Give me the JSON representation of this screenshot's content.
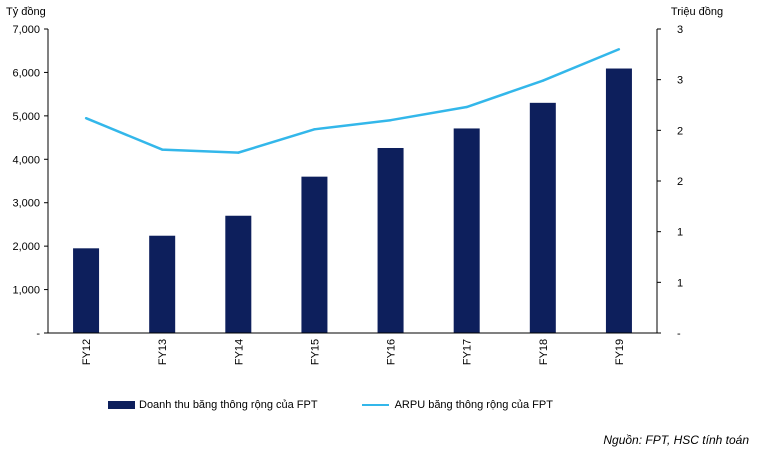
{
  "chart_data": {
    "type": "bar+line",
    "categories": [
      "FY12",
      "FY13",
      "FY14",
      "FY15",
      "FY16",
      "FY17",
      "FY18",
      "FY19"
    ],
    "series": [
      {
        "name": "Doanh thu băng thông rộng của FPT",
        "type": "bar",
        "axis": "left",
        "color": "#0d1f5c",
        "values": [
          1950,
          2240,
          2700,
          3600,
          4260,
          4710,
          5300,
          6090
        ]
      },
      {
        "name": "ARPU băng thông rộng của FPT",
        "type": "line",
        "axis": "right",
        "color": "#33b7ea",
        "values": [
          2.12,
          1.81,
          1.78,
          2.01,
          2.1,
          2.23,
          2.49,
          2.8
        ]
      }
    ],
    "y_left": {
      "label": "Tỷ đồng",
      "ylim": [
        0,
        7000
      ],
      "ticks": [
        0,
        1000,
        2000,
        3000,
        4000,
        5000,
        6000,
        7000
      ],
      "tick_labels": [
        "-",
        "1,000",
        "2,000",
        "3,000",
        "4,000",
        "5,000",
        "6,000",
        "7,000"
      ]
    },
    "y_right": {
      "label": "Triệu đồng",
      "ylim": [
        0,
        3
      ],
      "ticks": [
        0,
        0.5,
        1,
        1.5,
        2,
        2.5,
        3
      ],
      "tick_labels": [
        "-",
        "1",
        "1",
        "2",
        "2",
        "3",
        "3"
      ]
    },
    "grid": false,
    "legend_position": "bottom"
  },
  "source_note": "Nguồn: FPT, HSC tính toán"
}
